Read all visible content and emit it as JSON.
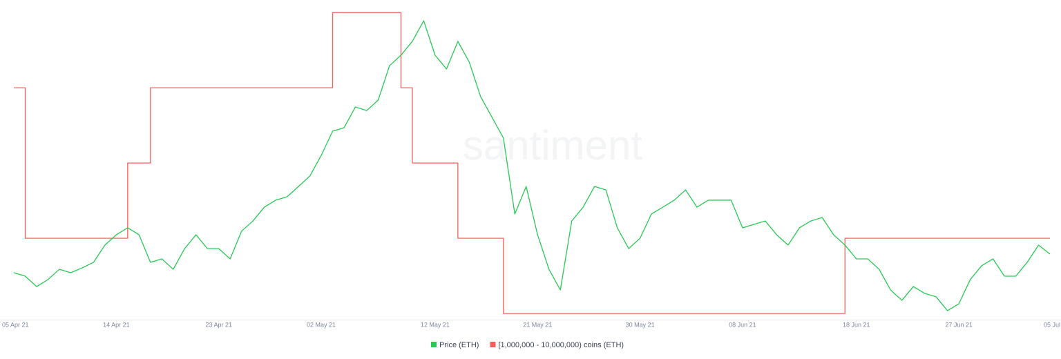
{
  "chart_data": {
    "type": "line",
    "watermark": "santiment",
    "x": [
      "2021-04-05",
      "2021-04-06",
      "2021-04-07",
      "2021-04-08",
      "2021-04-09",
      "2021-04-10",
      "2021-04-11",
      "2021-04-12",
      "2021-04-13",
      "2021-04-14",
      "2021-04-15",
      "2021-04-16",
      "2021-04-17",
      "2021-04-18",
      "2021-04-19",
      "2021-04-20",
      "2021-04-21",
      "2021-04-22",
      "2021-04-23",
      "2021-04-24",
      "2021-04-25",
      "2021-04-26",
      "2021-04-27",
      "2021-04-28",
      "2021-04-29",
      "2021-04-30",
      "2021-05-01",
      "2021-05-02",
      "2021-05-03",
      "2021-05-04",
      "2021-05-05",
      "2021-05-06",
      "2021-05-07",
      "2021-05-08",
      "2021-05-09",
      "2021-05-10",
      "2021-05-11",
      "2021-05-12",
      "2021-05-13",
      "2021-05-14",
      "2021-05-15",
      "2021-05-16",
      "2021-05-17",
      "2021-05-18",
      "2021-05-19",
      "2021-05-20",
      "2021-05-21",
      "2021-05-22",
      "2021-05-23",
      "2021-05-24",
      "2021-05-25",
      "2021-05-26",
      "2021-05-27",
      "2021-05-28",
      "2021-05-29",
      "2021-05-30",
      "2021-05-31",
      "2021-06-01",
      "2021-06-02",
      "2021-06-03",
      "2021-06-04",
      "2021-06-05",
      "2021-06-06",
      "2021-06-07",
      "2021-06-08",
      "2021-06-09",
      "2021-06-10",
      "2021-06-11",
      "2021-06-12",
      "2021-06-13",
      "2021-06-14",
      "2021-06-15",
      "2021-06-16",
      "2021-06-17",
      "2021-06-18",
      "2021-06-19",
      "2021-06-20",
      "2021-06-21",
      "2021-06-22",
      "2021-06-23",
      "2021-06-24",
      "2021-06-25",
      "2021-06-26",
      "2021-06-27",
      "2021-06-28",
      "2021-06-29",
      "2021-06-30",
      "2021-07-01",
      "2021-07-02",
      "2021-07-03",
      "2021-07-04",
      "2021-07-05"
    ],
    "xlim": [
      "2021-04-05",
      "2021-07-05"
    ],
    "xticks": [
      {
        "value": "2021-04-05",
        "label": "05 Apr 21"
      },
      {
        "value": "2021-04-14",
        "label": "14 Apr 21"
      },
      {
        "value": "2021-04-23",
        "label": "23 Apr 21"
      },
      {
        "value": "2021-05-02",
        "label": "02 May 21"
      },
      {
        "value": "2021-05-12",
        "label": "12 May 21"
      },
      {
        "value": "2021-05-21",
        "label": "21 May 21"
      },
      {
        "value": "2021-05-30",
        "label": "30 May 21"
      },
      {
        "value": "2021-06-08",
        "label": "08 Jun 21"
      },
      {
        "value": "2021-06-18",
        "label": "18 Jun 21"
      },
      {
        "value": "2021-06-27",
        "label": "27 Jun 21"
      },
      {
        "value": "2021-07-05",
        "label": "05 Jul"
      }
    ],
    "ylim": [
      1650,
      4400
    ],
    "y2lim": [
      54.8,
      63.15
    ],
    "series": [
      {
        "name": "Price (ETH)",
        "color": "#26c953",
        "values": [
          2073,
          2043,
          1952,
          2013,
          2103,
          2073,
          2115,
          2164,
          2315,
          2405,
          2466,
          2405,
          2164,
          2194,
          2103,
          2284,
          2405,
          2284,
          2284,
          2194,
          2436,
          2526,
          2647,
          2708,
          2738,
          2828,
          2919,
          3100,
          3312,
          3342,
          3524,
          3493,
          3584,
          3886,
          3977,
          4098,
          4279,
          3977,
          3856,
          4098,
          3917,
          3614,
          3433,
          3252,
          2587,
          2828,
          2405,
          2103,
          1922,
          2526,
          2647,
          2828,
          2798,
          2466,
          2284,
          2375,
          2587,
          2647,
          2708,
          2798,
          2647,
          2708,
          2708,
          2708,
          2466,
          2496,
          2526,
          2405,
          2315,
          2466,
          2526,
          2556,
          2405,
          2315,
          2194,
          2194,
          2103,
          1922,
          1831,
          1952,
          1892,
          1862,
          1741,
          1801,
          2013,
          2134,
          2194,
          2043,
          2043,
          2164,
          2315,
          2236
        ]
      },
      {
        "name": "[1,000,000 - 10,000,000) coins (ETH)",
        "color": "#ff5b5b",
        "axis": "y2",
        "step": true,
        "values": [
          61,
          57,
          57,
          57,
          57,
          57,
          57,
          57,
          57,
          57,
          59,
          59,
          61,
          61,
          61,
          61,
          61,
          61,
          61,
          61,
          61,
          61,
          61,
          61,
          61,
          61,
          61,
          61,
          63,
          63,
          63,
          63,
          63,
          63,
          61,
          59,
          59,
          59,
          59,
          57,
          57,
          57,
          57,
          55,
          55,
          55,
          55,
          55,
          55,
          55,
          55,
          55,
          55,
          55,
          55,
          55,
          55,
          55,
          55,
          55,
          55,
          55,
          55,
          55,
          55,
          55,
          55,
          55,
          55,
          55,
          55,
          55,
          55,
          57,
          57,
          57,
          57,
          57,
          57,
          57,
          57,
          57,
          57,
          57,
          57,
          57,
          57,
          57,
          57,
          57,
          57,
          57
        ]
      }
    ]
  }
}
